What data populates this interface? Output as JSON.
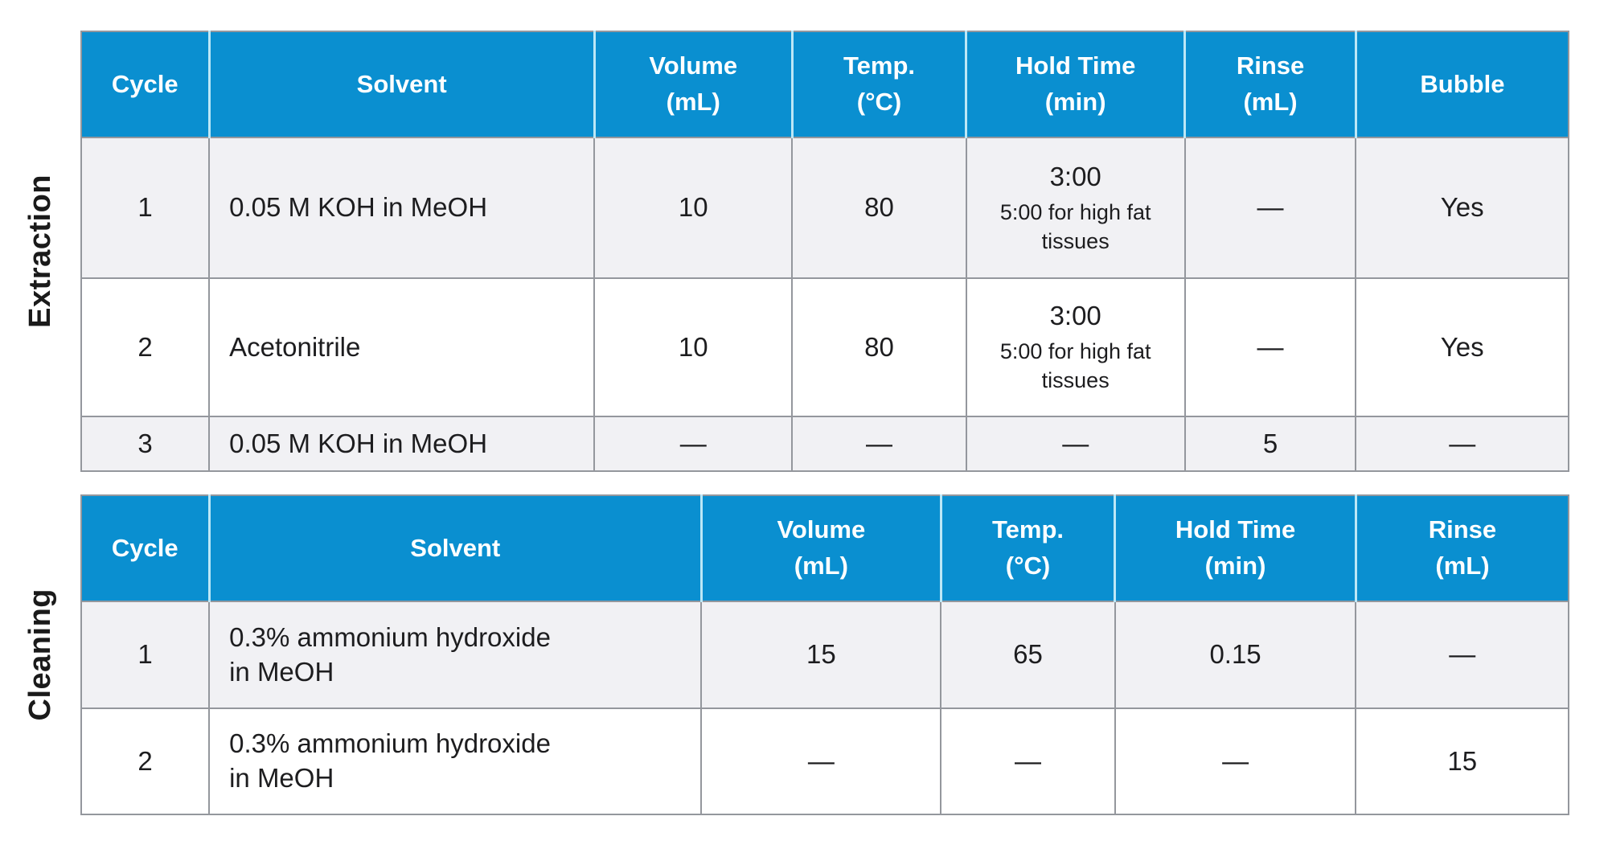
{
  "colors": {
    "header_bg": "#0a8fd0",
    "header_text": "#ffffff",
    "header_divider": "#bce7f6",
    "border": "#94979d",
    "row_alt_bg": "#f1f1f4",
    "text": "#1d1d1f"
  },
  "tables": [
    {
      "label": "Extraction",
      "headers": [
        [
          "Cycle"
        ],
        [
          "Solvent"
        ],
        [
          "Volume",
          "(mL)"
        ],
        [
          "Temp.",
          "(°C)"
        ],
        [
          "Hold Time",
          "(min)"
        ],
        [
          "Rinse",
          "(mL)"
        ],
        [
          "Bubble"
        ]
      ],
      "rows": [
        [
          "1",
          "0.05 M KOH in MeOH",
          "10",
          "80",
          {
            "v": "3:00",
            "note": "5:00 for high fat tissues"
          },
          "—",
          "Yes"
        ],
        [
          "2",
          "Acetonitrile",
          "10",
          "80",
          {
            "v": "3:00",
            "note": "5:00 for high fat tissues"
          },
          "—",
          "Yes"
        ],
        [
          "3",
          "0.05 M KOH in MeOH",
          "—",
          "—",
          "—",
          "5",
          "—"
        ]
      ]
    },
    {
      "label": "Cleaning",
      "headers": [
        [
          "Cycle"
        ],
        [
          "Solvent"
        ],
        [
          "Volume",
          "(mL)"
        ],
        [
          "Temp.",
          "(°C)"
        ],
        [
          "Hold Time",
          "(min)"
        ],
        [
          "Rinse",
          "(mL)"
        ]
      ],
      "rows": [
        [
          "1",
          "0.3% ammonium hydroxide\nin MeOH",
          "15",
          "65",
          "0.15",
          "—"
        ],
        [
          "2",
          "0.3% ammonium hydroxide\nin MeOH",
          "—",
          "—",
          "—",
          "15"
        ]
      ]
    }
  ]
}
